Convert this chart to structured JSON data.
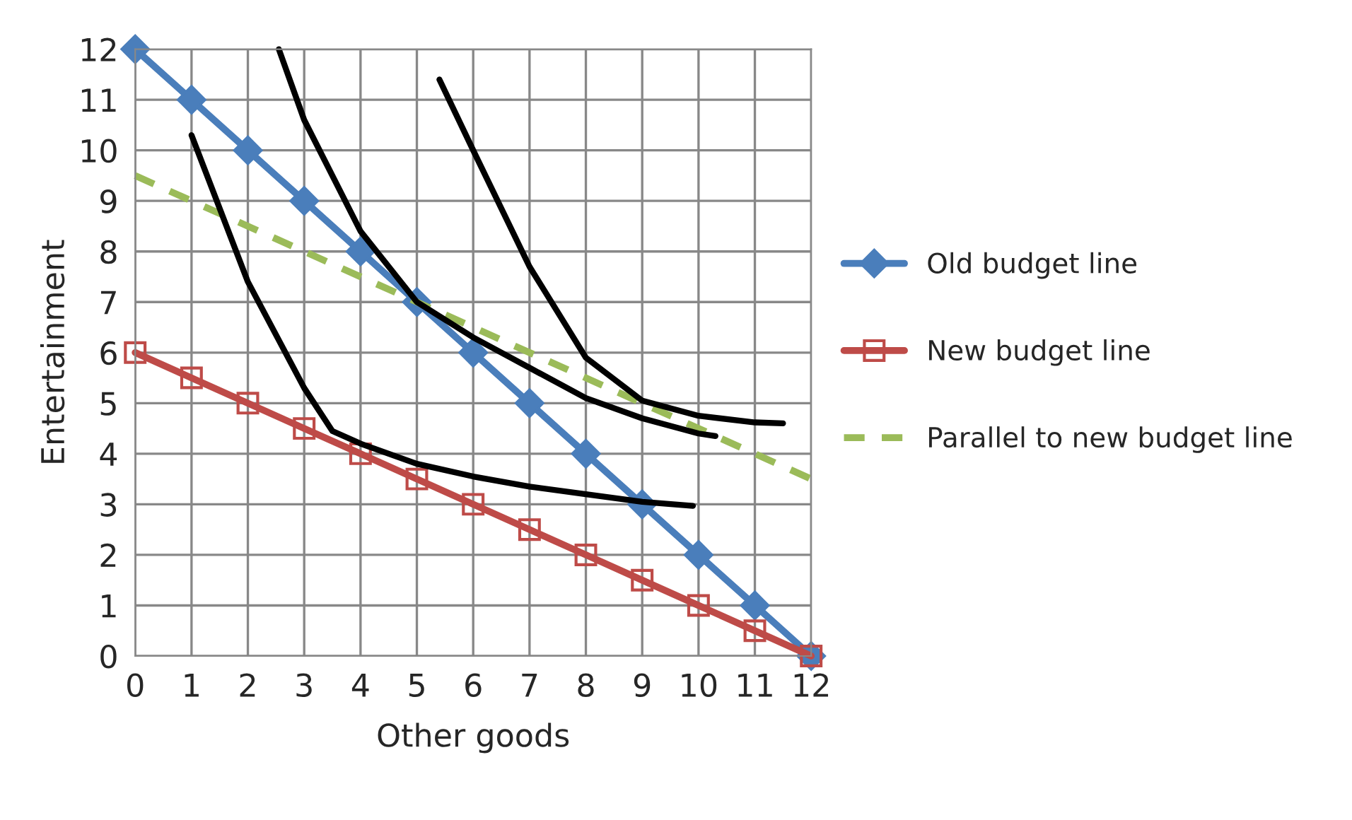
{
  "chart_data": {
    "type": "line",
    "xlabel": "Other goods",
    "ylabel": "Entertainment",
    "xlim": [
      0,
      12
    ],
    "ylim": [
      0,
      12
    ],
    "xticks": [
      0,
      1,
      2,
      3,
      4,
      5,
      6,
      7,
      8,
      9,
      10,
      11,
      12
    ],
    "yticks": [
      0,
      1,
      2,
      3,
      4,
      5,
      6,
      7,
      8,
      9,
      10,
      11,
      12
    ],
    "grid": true,
    "legend": "right",
    "series": [
      {
        "name": "Old budget line",
        "color": "#4a7ebb",
        "marker": "diamond",
        "line_style": "solid",
        "x": [
          0,
          1,
          2,
          3,
          4,
          5,
          6,
          7,
          8,
          9,
          10,
          11,
          12
        ],
        "values": [
          12,
          11,
          10,
          9,
          8,
          7,
          6,
          5,
          4,
          3,
          2,
          1,
          0
        ]
      },
      {
        "name": "New budget line",
        "color": "#be4b48",
        "marker": "square",
        "line_style": "solid",
        "x": [
          0,
          1,
          2,
          3,
          4,
          5,
          6,
          7,
          8,
          9,
          10,
          11,
          12
        ],
        "values": [
          6,
          5.5,
          5,
          4.5,
          4,
          3.5,
          3,
          2.5,
          2,
          1.5,
          1,
          0.5,
          0
        ]
      },
      {
        "name": "Parallel to new budget line",
        "color": "#9bbb59",
        "marker": "none",
        "line_style": "dashed",
        "x": [
          0,
          12
        ],
        "values": [
          9.5,
          3.5
        ]
      },
      {
        "color": "#000000",
        "marker": "none",
        "line_style": "solid",
        "x": [
          1,
          2,
          3,
          3.5,
          4,
          5,
          6,
          7,
          8,
          9,
          9.9
        ],
        "values": [
          10.3,
          7.4,
          5.3,
          4.45,
          4.2,
          3.8,
          3.55,
          3.35,
          3.2,
          3.05,
          2.97
        ]
      },
      {
        "color": "#000000",
        "marker": "none",
        "line_style": "solid",
        "x": [
          2.55,
          3,
          4,
          5,
          6,
          7,
          8,
          9,
          10,
          10.3
        ],
        "values": [
          12,
          10.6,
          8.4,
          7,
          6.3,
          5.7,
          5.1,
          4.7,
          4.4,
          4.35
        ]
      },
      {
        "color": "#000000",
        "marker": "none",
        "line_style": "solid",
        "x": [
          5.4,
          6,
          7,
          8,
          9,
          10,
          11,
          11.5
        ],
        "values": [
          11.4,
          10,
          7.7,
          5.9,
          5.05,
          4.75,
          4.62,
          4.6
        ]
      }
    ]
  }
}
